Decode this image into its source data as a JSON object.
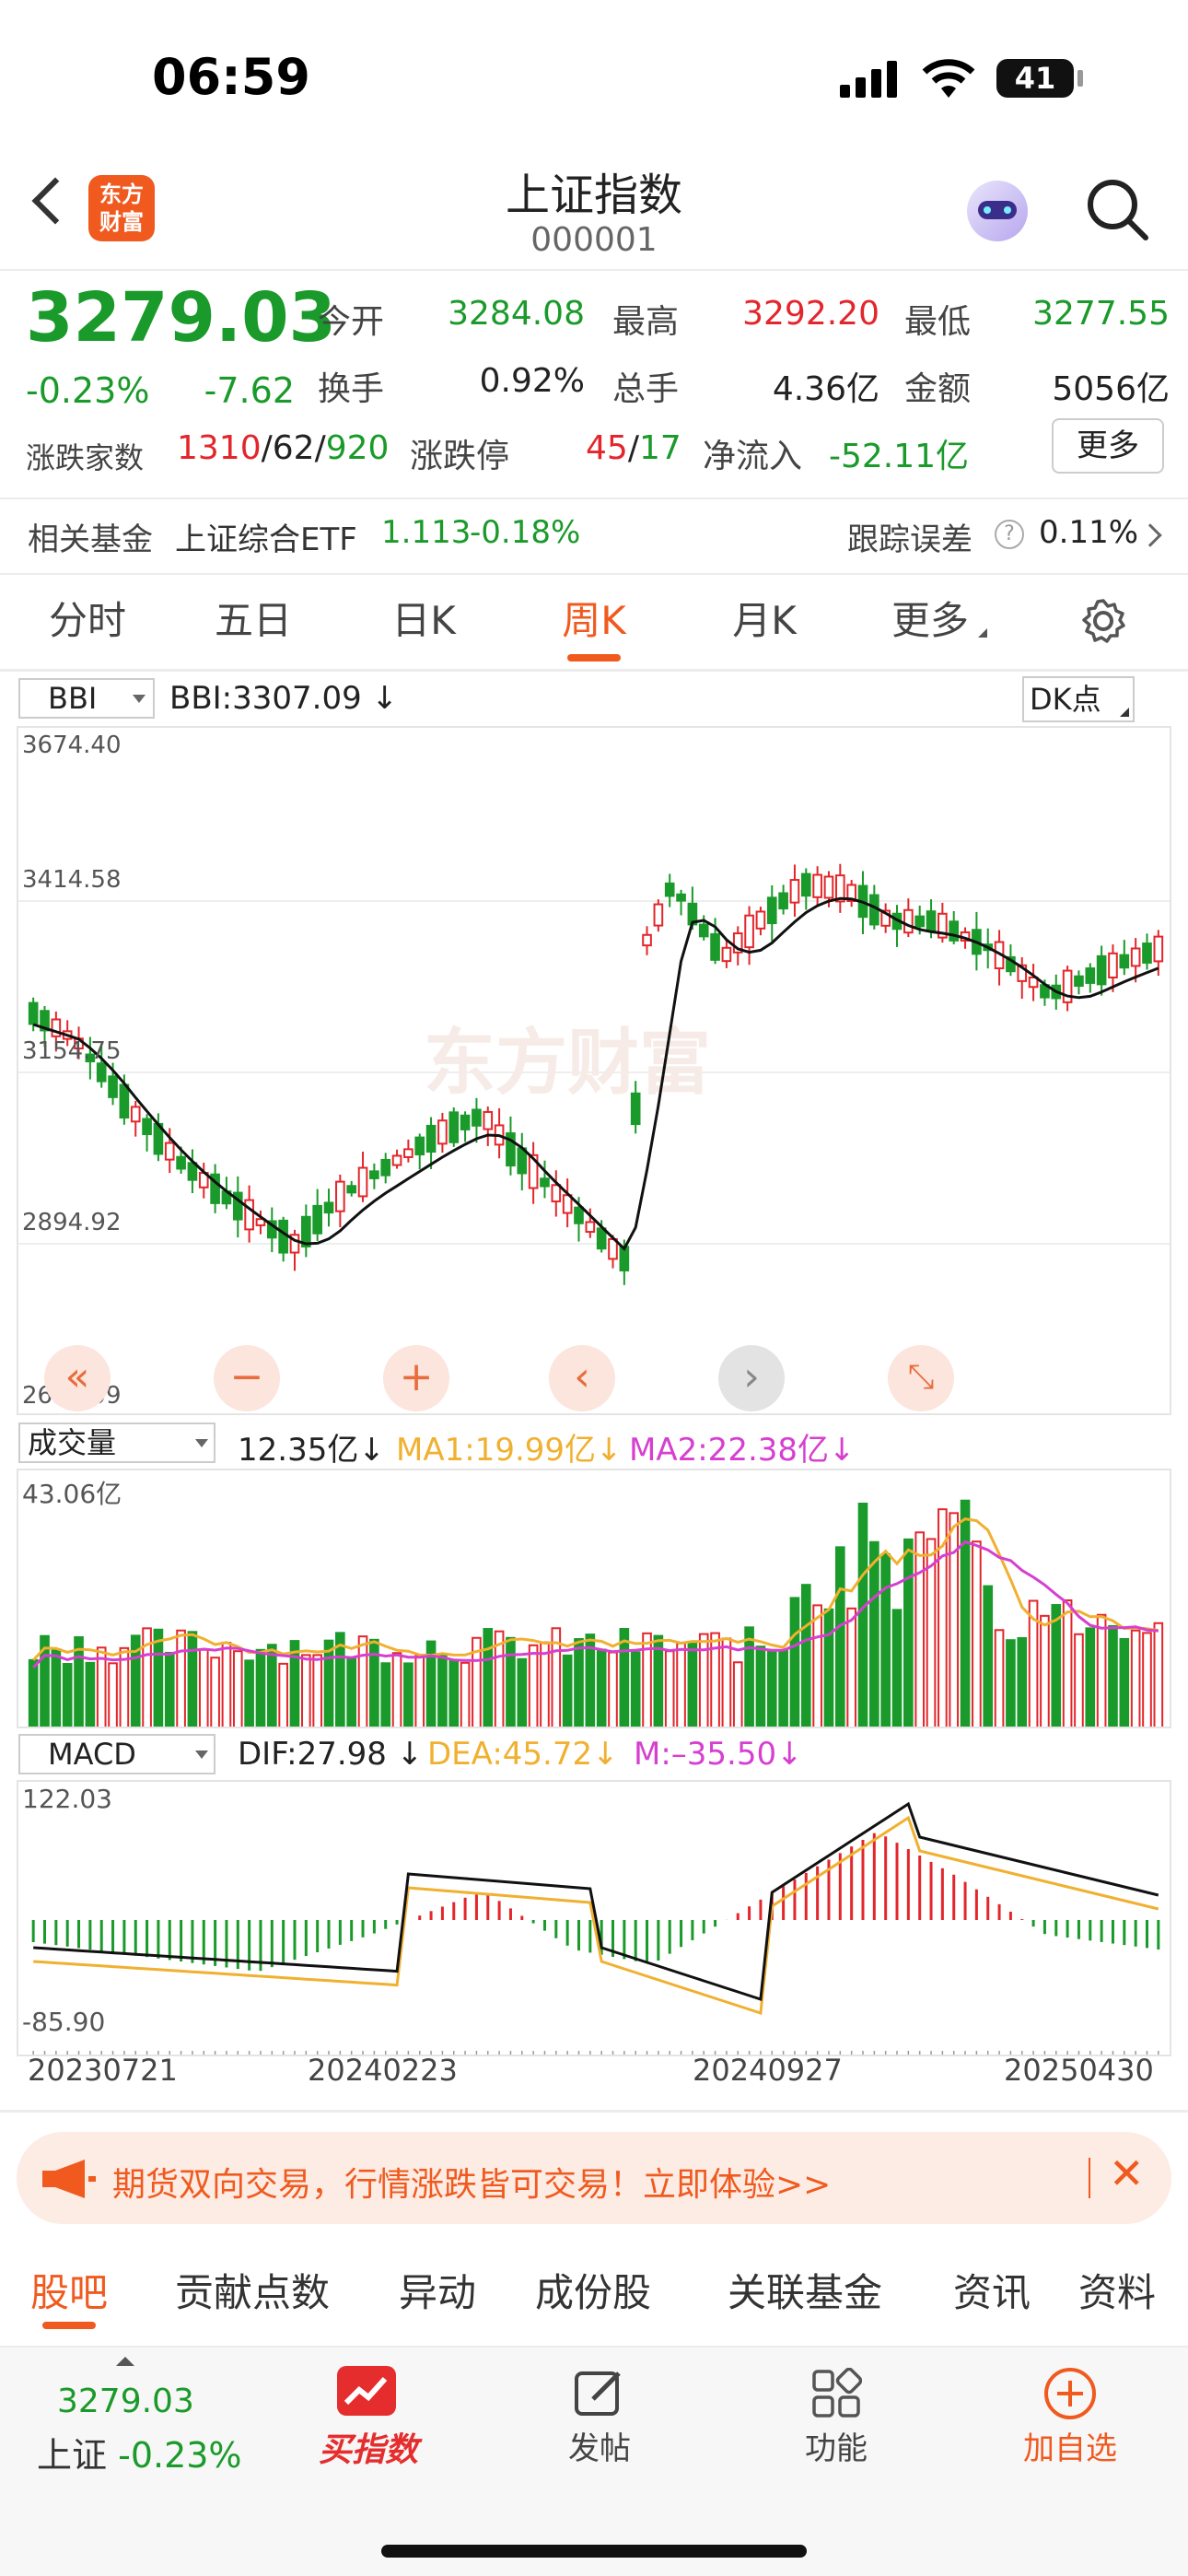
{
  "status": {
    "time": "06:59",
    "battery": "41"
  },
  "header": {
    "title": "上证指数",
    "code": "000001",
    "logo_line1": "东方",
    "logo_line2": "财富"
  },
  "quote": {
    "price": "3279.03",
    "change_pct": "-0.23%",
    "change": "-7.62",
    "open_label": "今开",
    "open": "3284.08",
    "high_label": "最高",
    "high": "3292.20",
    "low_label": "最低",
    "low": "3277.55",
    "turnover_label": "换手",
    "turnover": "0.92%",
    "volume_label": "总手",
    "volume": "4.36亿",
    "amount_label": "金额",
    "amount": "5056亿",
    "breadth_label": "涨跌家数",
    "breadth_up": "1310",
    "breadth_flat": "62",
    "breadth_down": "920",
    "limit_label": "涨跌停",
    "limit_up": "45",
    "limit_down": "17",
    "netflow_label": "净流入",
    "netflow": "-52.11亿",
    "more_label": "更多"
  },
  "fund": {
    "label": "相关基金",
    "name": "上证综合ETF",
    "price": "1.113",
    "change": "-0.18%",
    "tracking_label": "跟踪误差",
    "tracking": "0.11%"
  },
  "period_tabs": [
    "分时",
    "五日",
    "日K",
    "周K",
    "月K",
    "更多"
  ],
  "active_tab": 3,
  "main_chart": {
    "indicator": "BBI",
    "indicator_value": "BBI:3307.09",
    "dk_label": "DK点",
    "watermark": "东方财富",
    "y_labels": [
      "3674.40",
      "3414.58",
      "3154.75",
      "2894.92",
      "2635.09"
    ]
  },
  "volume_chart": {
    "indicator": "成交量",
    "value": "12.35亿",
    "ma1": "MA1:19.99亿",
    "ma2": "MA2:22.38亿",
    "max": "43.06亿"
  },
  "macd_chart": {
    "indicator": "MACD",
    "dif": "DIF:27.98",
    "dea": "DEA:45.72",
    "m": "M:–35.50",
    "max": "122.03",
    "min": "-85.90"
  },
  "x_labels": [
    "20230721",
    "20240223",
    "20240927",
    "20250430"
  ],
  "promo": {
    "text": "期货双向交易，行情涨跌皆可交易！立即体验>>"
  },
  "bottom_tabs": [
    "股吧",
    "贡献点数",
    "异动",
    "成份股",
    "关联基金",
    "资讯",
    "资料"
  ],
  "nav": {
    "price": "3279.03",
    "index_label": "上证",
    "change": "-0.23%",
    "buy_label": "买指数",
    "post_label": "发帖",
    "func_label": "功能",
    "watch_label": "加自选"
  },
  "colors": {
    "up": "#e3262b",
    "down": "#1a9a2a",
    "accent": "#f05a1f",
    "ma1": "#f0b030",
    "ma2": "#d63fd0"
  }
}
